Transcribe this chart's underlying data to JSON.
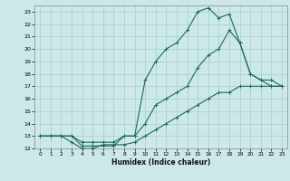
{
  "xlabel": "Humidex (Indice chaleur)",
  "xlim": [
    -0.5,
    23.5
  ],
  "ylim": [
    12,
    23.5
  ],
  "xticks": [
    0,
    1,
    2,
    3,
    4,
    5,
    6,
    7,
    8,
    9,
    10,
    11,
    12,
    13,
    14,
    15,
    16,
    17,
    18,
    19,
    20,
    21,
    22,
    23
  ],
  "yticks": [
    12,
    13,
    14,
    15,
    16,
    17,
    18,
    19,
    20,
    21,
    22,
    23
  ],
  "bg_color": "#cce8e8",
  "grid_color": "#aacccc",
  "line_color": "#1a6b5a",
  "line1_x": [
    0,
    1,
    2,
    3,
    4,
    5,
    6,
    7,
    8,
    9,
    10,
    11,
    12,
    13,
    14,
    15,
    16,
    17,
    18,
    19,
    20,
    21,
    22,
    23
  ],
  "line1_y": [
    13,
    13,
    13,
    13,
    12.2,
    12.2,
    12.2,
    12.2,
    13,
    13,
    17.5,
    19,
    20,
    20.5,
    21.5,
    23,
    23.3,
    22.5,
    22.8,
    20.5,
    18,
    17.5,
    17.5,
    17
  ],
  "line2_x": [
    0,
    1,
    2,
    3,
    4,
    5,
    6,
    7,
    8,
    9,
    10,
    11,
    12,
    13,
    14,
    15,
    16,
    17,
    18,
    19,
    20,
    21,
    22,
    23
  ],
  "line2_y": [
    13,
    13,
    13,
    13,
    12.5,
    12.5,
    12.5,
    12.5,
    13,
    13,
    14,
    15.5,
    16,
    16.5,
    17,
    18.5,
    19.5,
    20,
    21.5,
    20.5,
    18,
    17.5,
    17,
    17
  ],
  "line3_x": [
    0,
    1,
    2,
    3,
    4,
    5,
    6,
    7,
    8,
    9,
    10,
    11,
    12,
    13,
    14,
    15,
    16,
    17,
    18,
    19,
    20,
    21,
    22,
    23
  ],
  "line3_y": [
    13,
    13,
    13,
    12.5,
    12,
    12,
    12.3,
    12.3,
    12.3,
    12.5,
    13,
    13.5,
    14,
    14.5,
    15,
    15.5,
    16,
    16.5,
    16.5,
    17,
    17,
    17,
    17,
    17
  ]
}
